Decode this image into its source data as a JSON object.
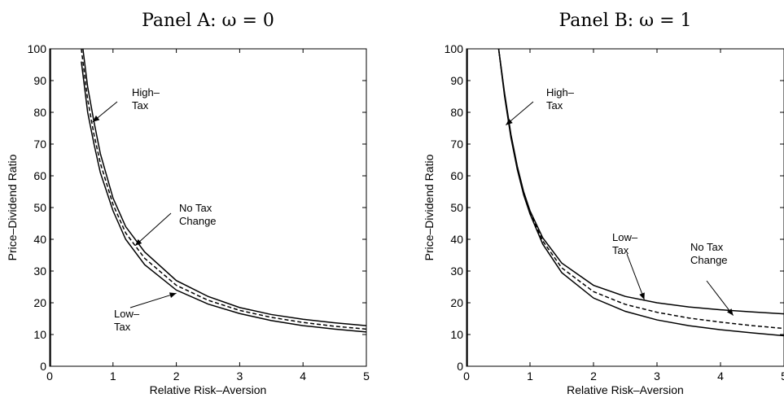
{
  "chart_data": [
    {
      "type": "line",
      "title": "Panel A: ω = 0",
      "xlabel": "Relative Risk–Aversion",
      "ylabel": "Price–Dividend Ratio",
      "xlim": [
        0,
        5
      ],
      "ylim": [
        0,
        100
      ],
      "xticks": [
        "0",
        "1",
        "2",
        "3",
        "4",
        "5"
      ],
      "yticks": [
        "0",
        "10",
        "20",
        "30",
        "40",
        "50",
        "60",
        "70",
        "80",
        "90",
        "100"
      ],
      "grid": false,
      "legend": "none",
      "x": [
        0.5,
        0.6,
        0.7,
        0.8,
        1.0,
        1.2,
        1.5,
        2.0,
        2.5,
        3.0,
        3.5,
        4.0,
        4.5,
        5.0
      ],
      "series": [
        {
          "values": [
            104,
            88,
            77,
            67,
            53,
            44,
            36,
            27,
            22,
            18.5,
            16.3,
            14.8,
            13.7,
            12.8
          ],
          "style": "solid"
        },
        {
          "values": [
            100,
            84,
            73,
            64,
            51,
            42,
            34,
            25.5,
            20.8,
            17.6,
            15.4,
            13.8,
            12.6,
            11.7
          ],
          "style": "dashed"
        },
        {
          "values": [
            96,
            80,
            70,
            61,
            49,
            40,
            32,
            24,
            19.6,
            16.6,
            14.4,
            12.8,
            11.7,
            10.8
          ],
          "style": "solid"
        }
      ],
      "annotations": [
        {
          "lines": [
            "High–",
            "Tax"
          ],
          "point": [
            0.68,
            77
          ]
        },
        {
          "lines": [
            "No Tax",
            "Change"
          ],
          "point": [
            1.35,
            38
          ]
        },
        {
          "lines": [
            "Low–",
            "Tax"
          ],
          "point": [
            2.0,
            23
          ]
        }
      ]
    },
    {
      "type": "line",
      "title": "Panel B: ω = 1",
      "xlabel": "Relative Risk–Aversion",
      "ylabel": "Price–Dividend Ratio",
      "xlim": [
        0,
        5
      ],
      "ylim": [
        0,
        100
      ],
      "xticks": [
        "0",
        "1",
        "2",
        "3",
        "4",
        "5"
      ],
      "yticks": [
        "0",
        "10",
        "20",
        "30",
        "40",
        "50",
        "60",
        "70",
        "80",
        "90",
        "100"
      ],
      "grid": false,
      "legend": "none",
      "x": [
        0.5,
        0.6,
        0.7,
        0.8,
        0.9,
        1.0,
        1.2,
        1.5,
        2.0,
        2.5,
        3.0,
        3.5,
        4.0,
        4.5,
        5.0
      ],
      "series": [
        {
          "values": [
            101,
            86,
            73,
            63,
            55,
            49,
            40.5,
            32.5,
            25.5,
            22,
            20,
            18.7,
            17.8,
            17.1,
            16.5
          ],
          "style": "solid"
        },
        {
          "values": [
            101,
            85.5,
            72.5,
            62.5,
            54.5,
            48.5,
            39.5,
            31,
            23.5,
            19.5,
            17,
            15.2,
            13.9,
            12.8,
            11.9
          ],
          "style": "dashed"
        },
        {
          "values": [
            101,
            85,
            72,
            62,
            54,
            48,
            38.5,
            29.5,
            21.5,
            17.3,
            14.6,
            12.8,
            11.5,
            10.5,
            9.6
          ],
          "style": "solid"
        }
      ],
      "annotations": [
        {
          "lines": [
            "High–",
            "Tax"
          ],
          "point": [
            0.62,
            76
          ]
        },
        {
          "lines": [
            "Low–",
            "Tax"
          ],
          "point": [
            2.8,
            21
          ]
        },
        {
          "lines": [
            "No Tax",
            "Change"
          ],
          "point": [
            4.2,
            16
          ]
        }
      ]
    }
  ]
}
